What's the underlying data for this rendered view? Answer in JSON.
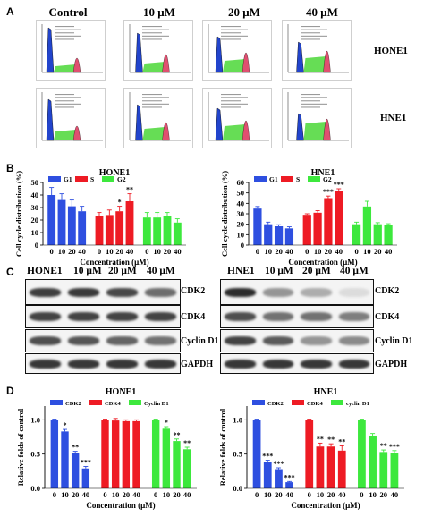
{
  "panel_letters": {
    "a": "A",
    "b": "B",
    "c": "C",
    "d": "D"
  },
  "panel_a": {
    "columns": [
      "Control",
      "10 μM",
      "20 μM",
      "40 μM"
    ],
    "rows": [
      "HONE1",
      "HNE1"
    ]
  },
  "panel_c": {
    "hone1_header": [
      "HONE1",
      "10 μM",
      "20 μM",
      "40 μM"
    ],
    "hne1_header": [
      "HNE1",
      "10 μM",
      "20 μM",
      "40 μM"
    ],
    "proteins": [
      "CDK2",
      "CDK4",
      "Cyclin D1",
      "GAPDH"
    ]
  },
  "colors": {
    "g1": "#2e4fe0",
    "s": "#ee1b24",
    "g2": "#3de83d",
    "flow_g1": "#2244cc",
    "flow_s": "#66dd55",
    "flow_g2": "#e05070"
  },
  "chart_data": [
    {
      "type": "bar",
      "title": "HONE1",
      "xlabel": "Concentration (μM)",
      "ylabel": "Cell cycle distribution (%)",
      "ylim": [
        0,
        50
      ],
      "yticks": [
        "0",
        "10",
        "20",
        "30",
        "40",
        "50"
      ],
      "categories": [
        "0",
        "10",
        "20",
        "40"
      ],
      "legend": [
        "G1",
        "S",
        "G2"
      ],
      "series": [
        {
          "name": "G1",
          "values": [
            40,
            36,
            31,
            27
          ],
          "errors": [
            6,
            5,
            5,
            4
          ],
          "sig": [
            "",
            "",
            "",
            ""
          ]
        },
        {
          "name": "S",
          "values": [
            23,
            24,
            27,
            35
          ],
          "errors": [
            3,
            4,
            4,
            6
          ],
          "sig": [
            "",
            "",
            "*",
            "**"
          ]
        },
        {
          "name": "G2",
          "values": [
            22,
            22,
            23,
            18
          ],
          "errors": [
            4,
            4,
            3,
            3
          ],
          "sig": [
            "",
            "",
            "",
            ""
          ]
        }
      ]
    },
    {
      "type": "bar",
      "title": "HNE1",
      "xlabel": "Concentration (μM)",
      "ylabel": "Cell cycle distribution (%)",
      "ylim": [
        0,
        60
      ],
      "yticks": [
        "0",
        "10",
        "20",
        "30",
        "40",
        "50",
        "60"
      ],
      "categories": [
        "0",
        "10",
        "20",
        "40"
      ],
      "legend": [
        "G1",
        "S",
        "G2"
      ],
      "series": [
        {
          "name": "G1",
          "values": [
            35,
            20,
            18,
            16
          ],
          "errors": [
            2,
            2,
            1.5,
            1.5
          ],
          "sig": [
            "",
            "",
            "",
            ""
          ]
        },
        {
          "name": "S",
          "values": [
            29,
            31,
            45,
            52
          ],
          "errors": [
            1,
            2,
            2,
            2
          ],
          "sig": [
            "",
            "",
            "***",
            "***"
          ]
        },
        {
          "name": "G2",
          "values": [
            20,
            37,
            20,
            19
          ],
          "errors": [
            2,
            5,
            1.5,
            1.5
          ],
          "sig": [
            "",
            "",
            "",
            ""
          ]
        }
      ]
    },
    {
      "type": "bar",
      "title": "HONE1",
      "xlabel": "Concentration (μM)",
      "ylabel": "Relative folds of control",
      "ylim": [
        0,
        1.2
      ],
      "yticks": [
        "0.0",
        "0.5",
        "1.0"
      ],
      "categories": [
        "0",
        "10",
        "20",
        "40"
      ],
      "legend": [
        "CDK2",
        "CDK4",
        "Cyclin D1"
      ],
      "series": [
        {
          "name": "CDK2",
          "values": [
            1.0,
            0.83,
            0.51,
            0.29
          ],
          "errors": [
            0.01,
            0.03,
            0.03,
            0.03
          ],
          "sig": [
            "",
            "*",
            "**",
            "***"
          ]
        },
        {
          "name": "CDK4",
          "values": [
            1.0,
            0.99,
            0.98,
            0.98
          ],
          "errors": [
            0.01,
            0.03,
            0.02,
            0.02
          ],
          "sig": [
            "",
            "",
            "",
            ""
          ]
        },
        {
          "name": "Cyclin D1",
          "values": [
            1.0,
            0.87,
            0.69,
            0.57
          ],
          "errors": [
            0.01,
            0.03,
            0.03,
            0.03
          ],
          "sig": [
            "",
            "*",
            "**",
            "**"
          ]
        }
      ]
    },
    {
      "type": "bar",
      "title": "HNE1",
      "xlabel": "Concentration (μM)",
      "ylabel": "Relative folds of control",
      "ylim": [
        0,
        1.2
      ],
      "yticks": [
        "0.0",
        "0.5",
        "1.0"
      ],
      "categories": [
        "0",
        "10",
        "20",
        "40"
      ],
      "legend": [
        "CDK2",
        "CDK4",
        "cyclin D1"
      ],
      "series": [
        {
          "name": "CDK2",
          "values": [
            1.0,
            0.39,
            0.28,
            0.09
          ],
          "errors": [
            0.01,
            0.02,
            0.02,
            0.01
          ],
          "sig": [
            "",
            "***",
            "***",
            "***"
          ]
        },
        {
          "name": "CDK4",
          "values": [
            1.0,
            0.61,
            0.61,
            0.55
          ],
          "errors": [
            0.01,
            0.05,
            0.04,
            0.07
          ],
          "sig": [
            "",
            "**",
            "**",
            "**"
          ]
        },
        {
          "name": "cyclin D1",
          "values": [
            1.0,
            0.77,
            0.53,
            0.52
          ],
          "errors": [
            0.01,
            0.03,
            0.03,
            0.03
          ],
          "sig": [
            "",
            "",
            "**",
            "***"
          ]
        }
      ]
    }
  ]
}
